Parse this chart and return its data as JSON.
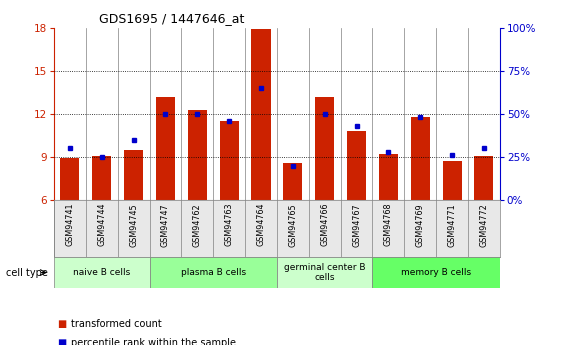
{
  "title": "GDS1695 / 1447646_at",
  "categories": [
    "GSM94741",
    "GSM94744",
    "GSM94745",
    "GSM94747",
    "GSM94762",
    "GSM94763",
    "GSM94764",
    "GSM94765",
    "GSM94766",
    "GSM94767",
    "GSM94768",
    "GSM94769",
    "GSM94771",
    "GSM94772"
  ],
  "red_values": [
    8.9,
    9.05,
    9.5,
    13.2,
    12.3,
    11.5,
    17.9,
    8.6,
    13.2,
    10.8,
    9.2,
    11.8,
    8.7,
    9.1
  ],
  "blue_values_pct": [
    30,
    25,
    35,
    50,
    50,
    46,
    65,
    20,
    50,
    43,
    28,
    48,
    26,
    30
  ],
  "red_base": 6,
  "ylim_left": [
    6,
    18
  ],
  "ylim_right": [
    0,
    100
  ],
  "yticks_left": [
    6,
    9,
    12,
    15,
    18
  ],
  "yticks_right": [
    0,
    25,
    50,
    75,
    100
  ],
  "ytick_labels_right": [
    "0%",
    "25%",
    "50%",
    "75%",
    "100%"
  ],
  "cell_groups": [
    {
      "label": "naive B cells",
      "start": 0,
      "end": 3,
      "color": "#ccffcc"
    },
    {
      "label": "plasma B cells",
      "start": 3,
      "end": 7,
      "color": "#99ff99"
    },
    {
      "label": "germinal center B\ncells",
      "start": 7,
      "end": 10,
      "color": "#ccffcc"
    },
    {
      "label": "memory B cells",
      "start": 10,
      "end": 14,
      "color": "#66ff66"
    }
  ],
  "bar_color": "#cc2200",
  "dot_color": "#0000cc",
  "tick_label_color_left": "#cc2200",
  "tick_label_color_right": "#0000cc",
  "cell_type_label": "cell type",
  "legend_items": [
    {
      "color": "#cc2200",
      "label": "transformed count"
    },
    {
      "color": "#0000cc",
      "label": "percentile rank within the sample"
    }
  ]
}
